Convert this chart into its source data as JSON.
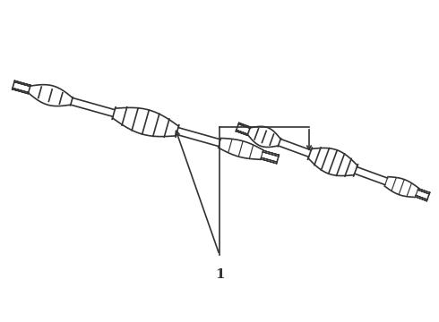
{
  "background_color": "#ffffff",
  "line_color": "#333333",
  "line_width": 1.2,
  "label_text": "1",
  "label_fontsize": 11,
  "label_bold": true,
  "fig_width": 4.9,
  "fig_height": 3.6,
  "dpi": 100
}
